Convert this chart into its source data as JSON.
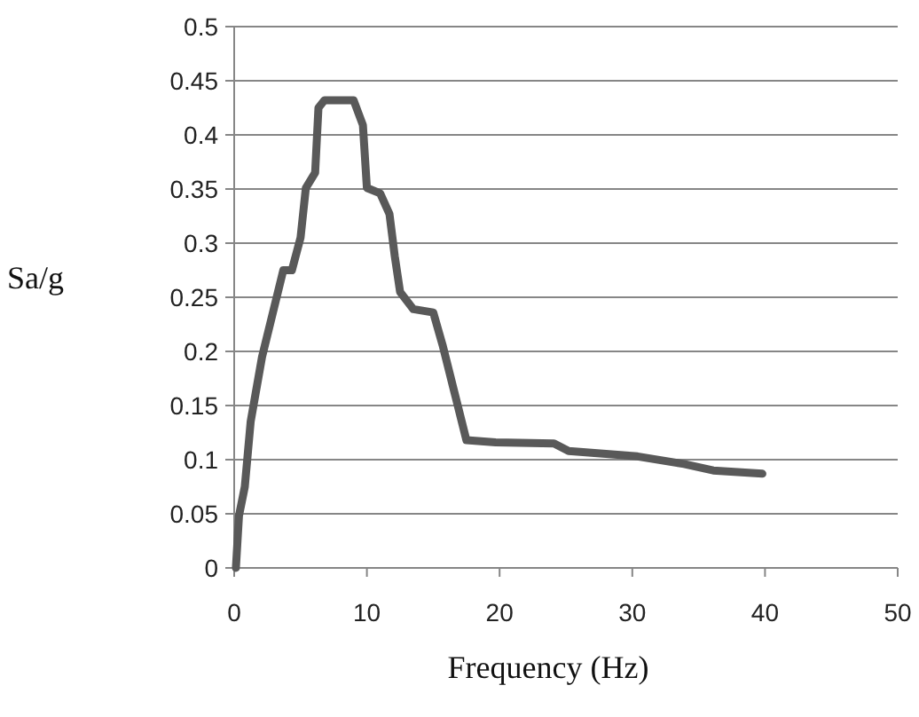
{
  "chart_data": {
    "type": "line",
    "xlabel": "Frequency (Hz)",
    "ylabel": "Sa/g",
    "xlim": [
      0,
      50
    ],
    "xticks": [
      0,
      10,
      20,
      30,
      40,
      50
    ],
    "ylim": [
      0,
      0.5
    ],
    "yticks": [
      0,
      0.05,
      0.1,
      0.15,
      0.2,
      0.25,
      0.3,
      0.35,
      0.4,
      0.45,
      0.5
    ],
    "grid": "y",
    "marker": "none",
    "line_style": "solid",
    "series": [
      {
        "color": "#595959",
        "x": [
          0.13,
          0.36,
          0.8,
          1.24,
          2.1,
          3.7,
          4.35,
          5.0,
          5.4,
          6.1,
          6.35,
          6.8,
          9.0,
          9.7,
          10.0,
          11.0,
          11.7,
          12.1,
          12.5,
          13.5,
          15.0,
          15.7,
          16.6,
          17.5,
          19.7,
          24.1,
          25.2,
          30.4,
          33.9,
          36.1,
          39.8
        ],
        "values": [
          0,
          0.048,
          0.075,
          0.135,
          0.195,
          0.275,
          0.275,
          0.305,
          0.351,
          0.365,
          0.425,
          0.432,
          0.432,
          0.409,
          0.351,
          0.346,
          0.327,
          0.288,
          0.255,
          0.239,
          0.236,
          0.206,
          0.162,
          0.118,
          0.116,
          0.115,
          0.108,
          0.103,
          0.096,
          0.09,
          0.087
        ]
      }
    ]
  }
}
